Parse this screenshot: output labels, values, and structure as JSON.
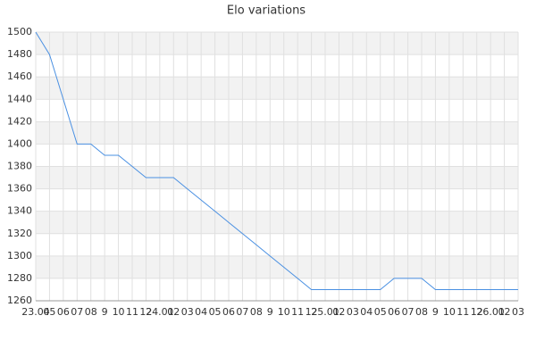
{
  "chart_data": {
    "type": "line",
    "title": "Elo variations",
    "categories": [
      "23.04",
      "05",
      "06",
      "07",
      "08",
      "9",
      "10",
      "11",
      "12",
      "24.01",
      "02",
      "03",
      "04",
      "05",
      "06",
      "07",
      "08",
      "9",
      "10",
      "11",
      "12",
      "25.01",
      "02",
      "03",
      "04",
      "05",
      "06",
      "07",
      "08",
      "9",
      "10",
      "11",
      "12",
      "26.01",
      "02",
      "03"
    ],
    "series": [
      {
        "name": "Elo",
        "color": "#4a90e2",
        "values": [
          1500,
          1480,
          1440,
          1400,
          1400,
          1390,
          1390,
          1380,
          1370,
          1370,
          1370,
          1360,
          1350,
          1340,
          1330,
          1320,
          1310,
          1300,
          1290,
          1280,
          1270,
          1270,
          1270,
          1270,
          1270,
          1270,
          1280,
          1280,
          1280,
          1270,
          1270,
          1270,
          1270,
          1270,
          1270,
          1270
        ]
      }
    ],
    "ylim": [
      1260,
      1500
    ],
    "yticks": [
      1260,
      1280,
      1300,
      1320,
      1340,
      1360,
      1380,
      1400,
      1420,
      1440,
      1460,
      1480,
      1500
    ],
    "grid": true
  }
}
